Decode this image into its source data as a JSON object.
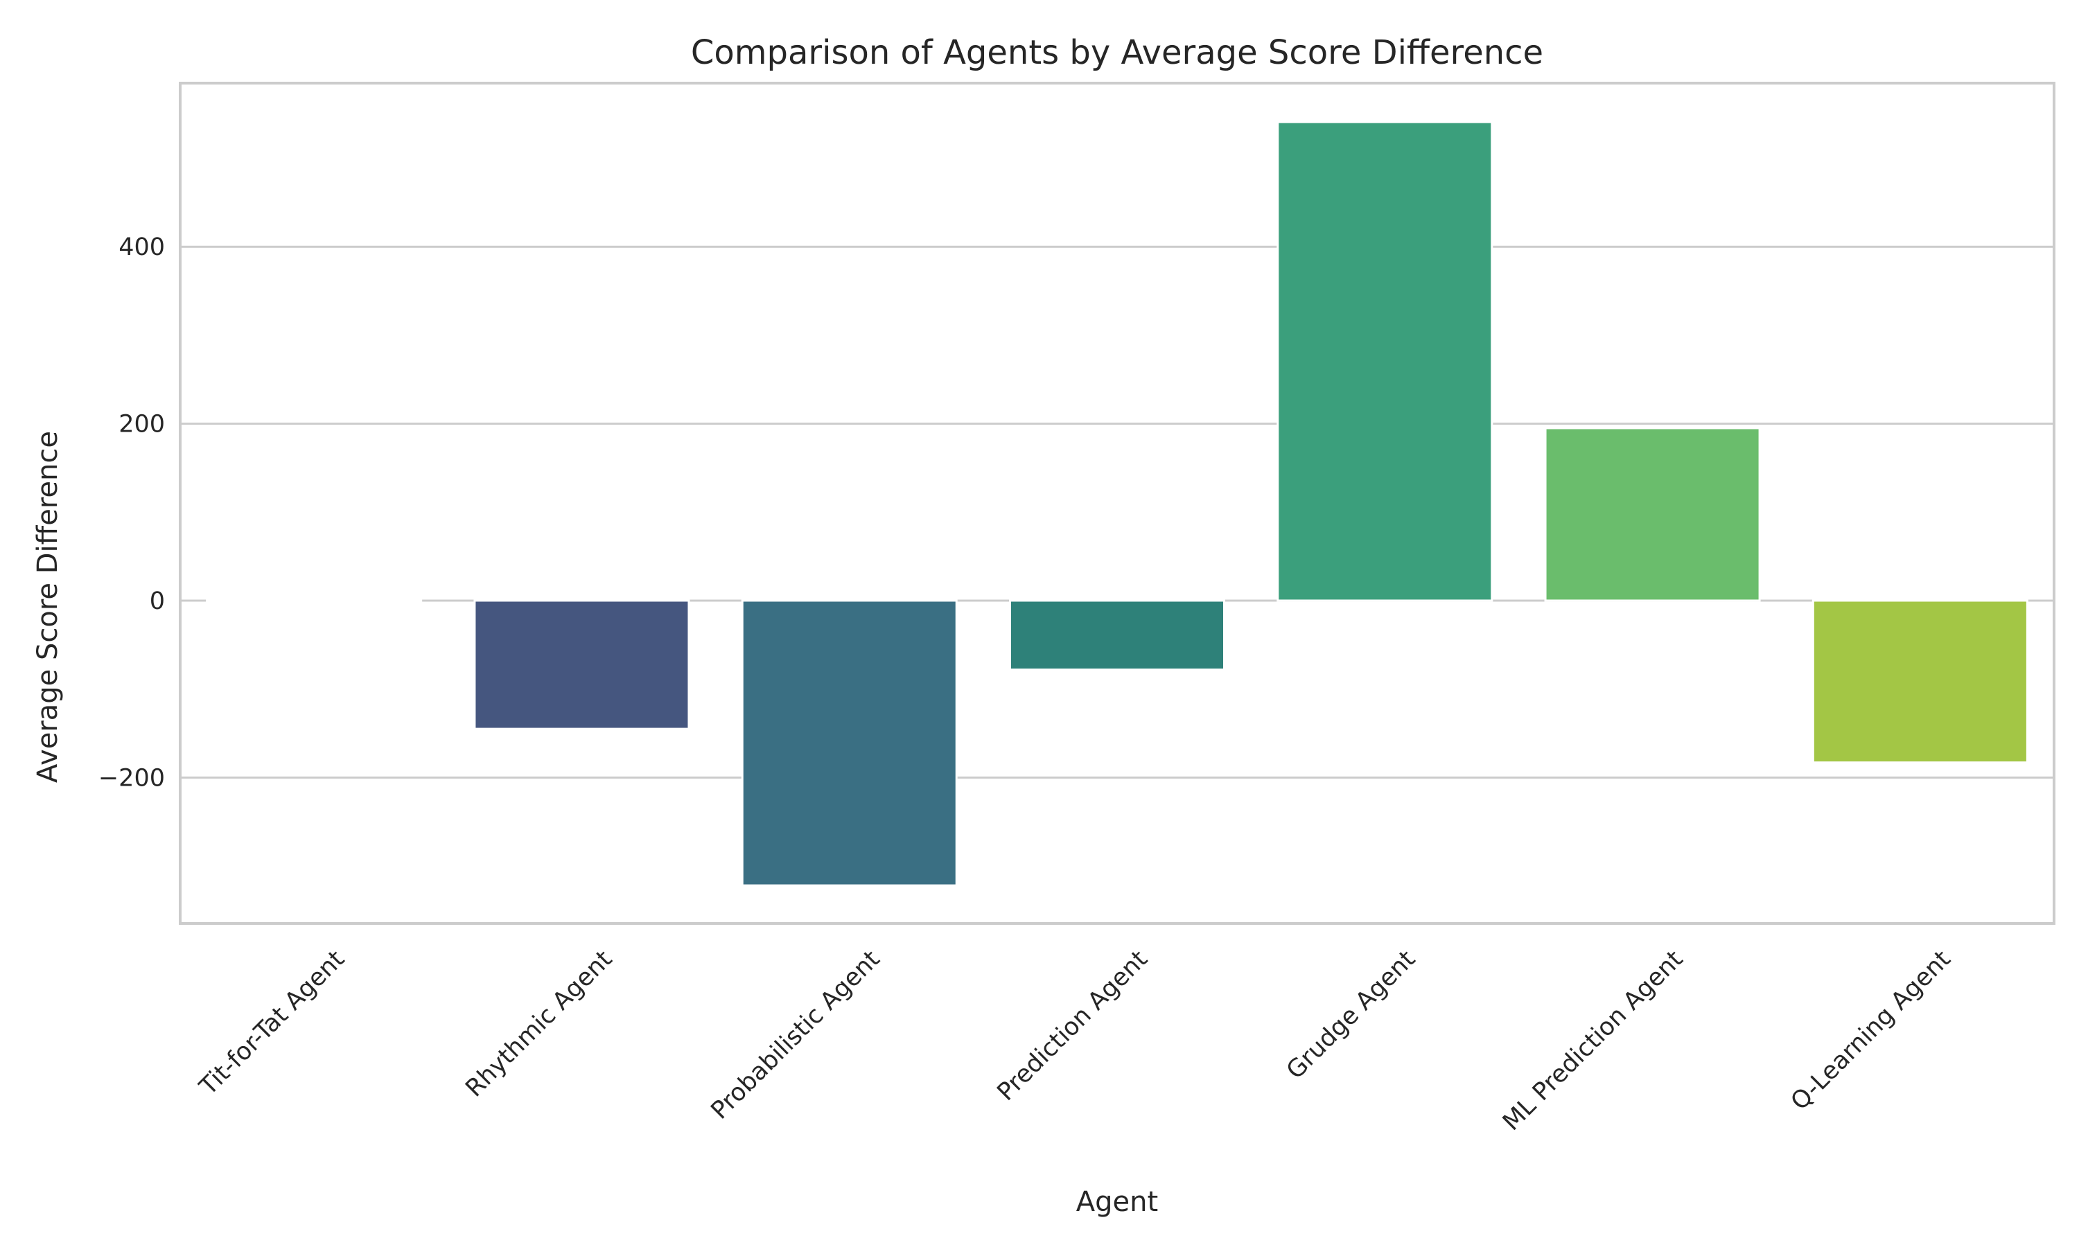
{
  "chart_data": {
    "type": "bar",
    "title": "Comparison of Agents by Average Score Difference",
    "xlabel": "Agent",
    "ylabel": "Average Score Difference",
    "categories": [
      "Tit-for-Tat Agent",
      "Rhythmic Agent",
      "Probabilistic Agent",
      "Prediction Agent",
      "Grudge Agent",
      "ML Prediction Agent",
      "Q-Learning Agent"
    ],
    "values": [
      0,
      -145,
      -322,
      -78,
      541,
      195,
      -183
    ],
    "colors": [
      "#482677",
      "#45567f",
      "#3a6f83",
      "#2e8179",
      "#3b9f7c",
      "#6abd6c",
      "#a3c645"
    ],
    "yticks": [
      -200,
      0,
      200,
      400
    ],
    "ytick_labels": [
      "−200",
      "0",
      "200",
      "400"
    ],
    "ylim": [
      -365,
      585
    ],
    "grid": true,
    "legend": "none"
  }
}
